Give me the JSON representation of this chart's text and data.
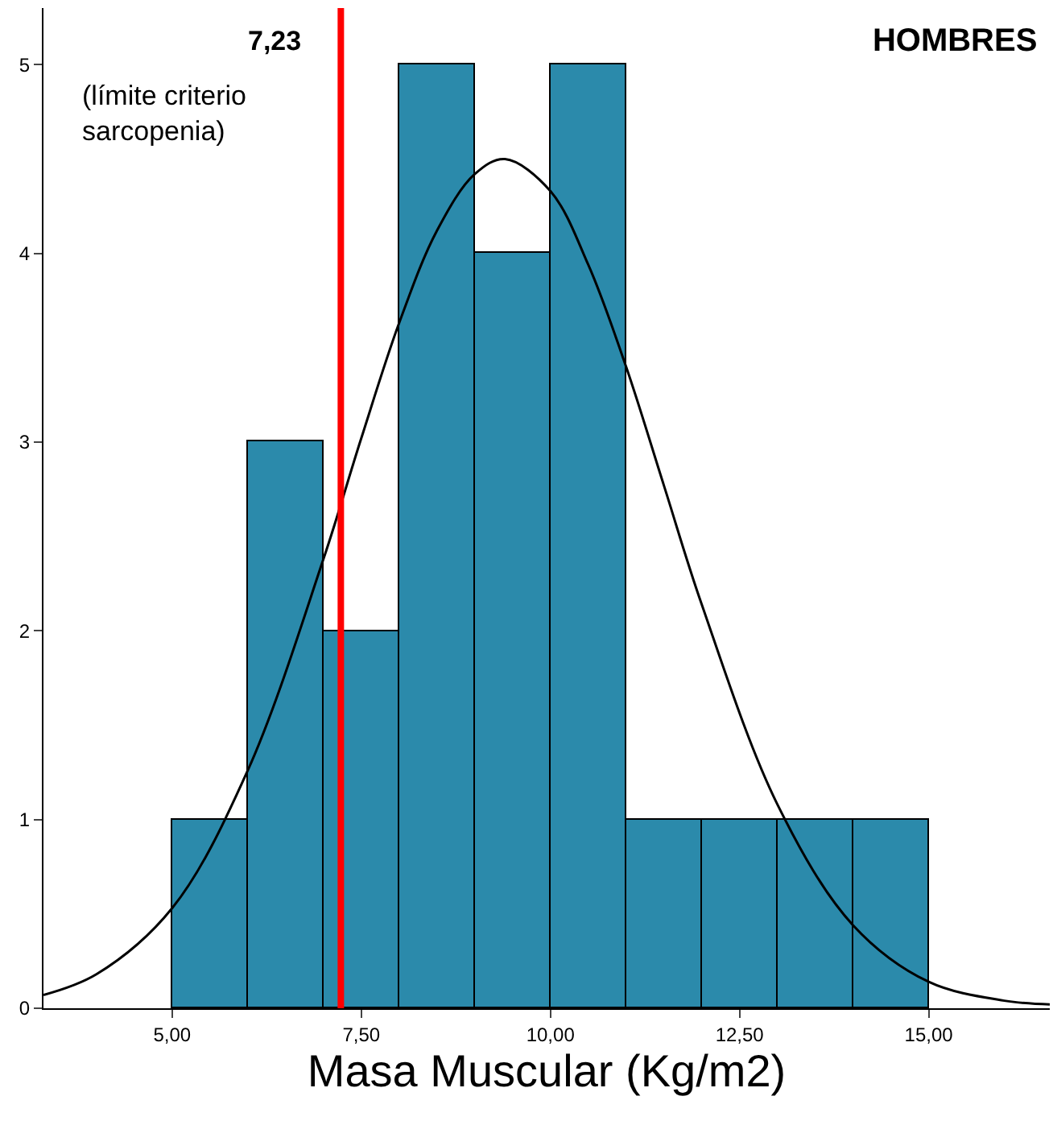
{
  "chart_data": {
    "type": "histogram",
    "title": "HOMBRES",
    "xlabel": "Masa Muscular (Kg/m2)",
    "bins": [
      5,
      6,
      7,
      8,
      9,
      10,
      11,
      12,
      13,
      14,
      15
    ],
    "values": [
      1,
      3,
      2,
      5,
      4,
      5,
      1,
      1,
      1,
      1
    ],
    "color": "#2b8aab",
    "series": [
      {
        "type": "line",
        "color": "#000000",
        "x": [
          3.3,
          4,
          5,
          6,
          7,
          7.5,
          8,
          8.5,
          9,
          9.4,
          10,
          10.5,
          11,
          11.5,
          12,
          13,
          14,
          15,
          16,
          16.6
        ],
        "values": [
          0.07,
          0.18,
          0.53,
          1.26,
          2.38,
          3.02,
          3.63,
          4.12,
          4.42,
          4.5,
          4.33,
          3.94,
          3.4,
          2.77,
          2.14,
          1.08,
          0.44,
          0.14,
          0.04,
          0.02
        ]
      }
    ],
    "xlim": [
      3.3,
      16.6
    ],
    "ylim": [
      0,
      5.3
    ],
    "xticks": [
      {
        "value": 5,
        "label": "5,00"
      },
      {
        "value": 7.5,
        "label": "7,50"
      },
      {
        "value": 10,
        "label": "10,00"
      },
      {
        "value": 12.5,
        "label": "12,50"
      },
      {
        "value": 15,
        "label": "15,00"
      }
    ],
    "yticks": [
      0,
      1,
      2,
      3,
      4,
      5
    ],
    "ref_lines": [
      {
        "axis": "x",
        "value": 7.23,
        "label": "7,23",
        "color": "#ff0000"
      }
    ],
    "annotations": [
      "(límite criterio\nsarcopenia)"
    ],
    "marker": "none"
  }
}
